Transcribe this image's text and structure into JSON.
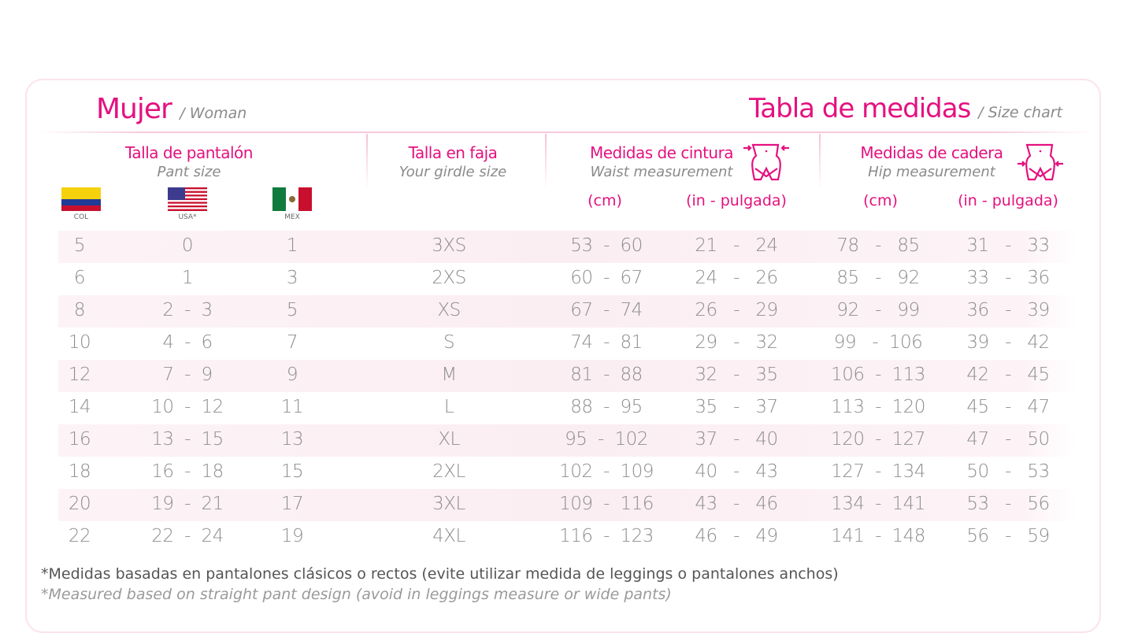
{
  "header": {
    "title_es": "Mujer",
    "title_en": "/ Woman",
    "chart_es": "Tabla de medidas",
    "chart_en": "/ Size chart"
  },
  "columns": {
    "pant": {
      "es": "Talla de pantalón",
      "en": "Pant size",
      "flags": [
        {
          "label": "COL",
          "icon": "colombia-flag-icon"
        },
        {
          "label": "USA*",
          "icon": "usa-flag-icon"
        },
        {
          "label": "MEX",
          "icon": "mexico-flag-icon"
        }
      ]
    },
    "girdle": {
      "es": "Talla en faja",
      "en": "Your girdle size"
    },
    "waist": {
      "es": "Medidas de cintura",
      "en": "Waist measurement",
      "cm": "(cm)",
      "in": "(in - pulgada)",
      "icon": "waist-measure-icon"
    },
    "hip": {
      "es": "Medidas de cadera",
      "en": "Hip measurement",
      "cm": "(cm)",
      "in": "(in - pulgada)",
      "icon": "hip-measure-icon"
    }
  },
  "rows": [
    [
      "5",
      "0",
      "1",
      "3XS",
      "53  -  60",
      "21   -   24",
      "78   -   85",
      "31   -   33"
    ],
    [
      "6",
      "1",
      "3",
      "2XS",
      "60  -  67",
      "24   -   26",
      "85   -   92",
      "33   -   36"
    ],
    [
      "8",
      "2  -  3",
      "5",
      "XS",
      "67  -  74",
      "26   -   29",
      "92   -   99",
      "36   -   39"
    ],
    [
      "10",
      "4  -  6",
      "7",
      "S",
      "74  -  81",
      "29   -   32",
      "99   -  106",
      "39   -   42"
    ],
    [
      "12",
      "7  -  9",
      "9",
      "M",
      "81  -  88",
      "32   -   35",
      "106  -  113",
      "42   -   45"
    ],
    [
      "14",
      "10  -  12",
      "11",
      "L",
      "88  -  95",
      "35   -   37",
      "113  -  120",
      "45   -   47"
    ],
    [
      "16",
      "13  -  15",
      "13",
      "XL",
      "95  -  102",
      "37   -   40",
      "120  -  127",
      "47   -   50"
    ],
    [
      "18",
      "16  -  18",
      "15",
      "2XL",
      "102  -  109",
      "40   -   43",
      "127  -  134",
      "50   -   53"
    ],
    [
      "20",
      "19  -  21",
      "17",
      "3XL",
      "109  -  116",
      "43   -   46",
      "134  -  141",
      "53   -   56"
    ],
    [
      "22",
      "22  -  24",
      "19",
      "4XL",
      "116  -  123",
      "46   -   49",
      "141  -  148",
      "56   -   59"
    ]
  ],
  "footnote": {
    "es": "*Medidas basadas en pantalones clásicos o rectos (evite utilizar medida de leggings o pantalones anchos)",
    "en": "*Measured based on straight pant design (avoid in leggings measure or wide pants)"
  },
  "colors": {
    "accent": "#e4117f",
    "text": "#8a8a8a",
    "row_shade": "#fbeef3"
  }
}
